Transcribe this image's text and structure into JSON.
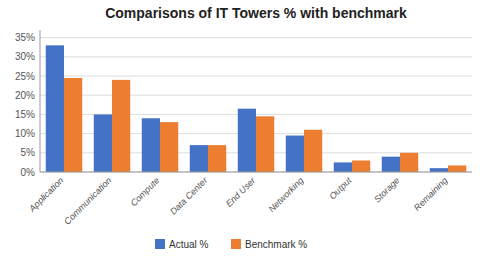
{
  "chart_data": {
    "type": "bar",
    "title": "Comparisons of IT Towers % with benchmark",
    "categories": [
      "Application",
      "Communication",
      "Compute",
      "Data Center",
      "End User",
      "Networking",
      "Output",
      "Storage",
      "Remaining"
    ],
    "series": [
      {
        "name": "Actual %",
        "color": "#4472C4",
        "values": [
          33,
          15,
          14,
          7,
          16.5,
          9.5,
          2.5,
          4,
          1
        ]
      },
      {
        "name": "Benchmark %",
        "color": "#ED7D31",
        "values": [
          24.5,
          24,
          13,
          7,
          14.5,
          11,
          3,
          5,
          1.7
        ]
      }
    ],
    "ylim": [
      0,
      37
    ],
    "yticks": [
      {
        "value": 0,
        "label": "0%"
      },
      {
        "value": 5,
        "label": "5%"
      },
      {
        "value": 10,
        "label": "10%"
      },
      {
        "value": 15,
        "label": "15%"
      },
      {
        "value": 20,
        "label": "20%"
      },
      {
        "value": 25,
        "label": "25%"
      },
      {
        "value": 30,
        "label": "30%"
      },
      {
        "value": 35,
        "label": "35%"
      }
    ],
    "grid": true,
    "legend": "bottom"
  }
}
